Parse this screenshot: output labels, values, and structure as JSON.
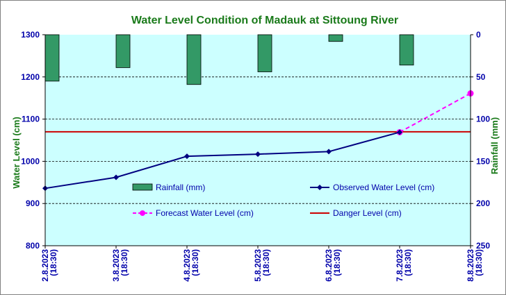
{
  "colors": {
    "title": "#1a7a1a",
    "plot_bg": "#ccffff",
    "rainfall_fill": "#339966",
    "rainfall_edge": "#000000",
    "observed": "#000080",
    "forecast": "#ff00ff",
    "danger": "#cc0000",
    "tick_text": "#0000aa",
    "left_axis_title": "#1a7a1a",
    "right_axis_title": "#1a7a1a"
  },
  "chart_data": {
    "type": "line",
    "title": "Water Level Condition of Madauk at Sittoung River",
    "ylabel": "Water Level (cm)",
    "y2label": "Rainfall (mm)",
    "ylim": [
      800,
      1300
    ],
    "y2lim": [
      0,
      250
    ],
    "y2_inverted": true,
    "yticks": [
      "1300",
      "1200",
      "1100",
      "1000",
      "900",
      "800"
    ],
    "y2ticks": [
      "0",
      "50",
      "100",
      "150",
      "200",
      "250"
    ],
    "x_labels": [
      [
        "2.8.2023",
        "(18:30)"
      ],
      [
        "3.8.2023",
        "(18:30)"
      ],
      [
        "4.8.2023",
        "(18:30)"
      ],
      [
        "5.8.2023",
        "(18:30)"
      ],
      [
        "6.8.2023",
        "(18:30)"
      ],
      [
        "7.8.2023",
        "(18:30)"
      ],
      [
        "8.8.2023",
        "(18:30)"
      ]
    ],
    "grid": true,
    "rainfall": {
      "name": "Rainfall (mm)",
      "values": [
        55,
        39,
        59,
        44,
        8,
        36
      ]
    },
    "observed": {
      "name": "Observed Water Level (cm)",
      "values": [
        936,
        962,
        1012,
        1017,
        1023,
        1069
      ]
    },
    "forecast": {
      "name": "Forecast Water Level (cm)",
      "x_index": [
        5,
        6
      ],
      "values": [
        1069,
        1161
      ]
    },
    "danger": {
      "name": "Danger Level (cm)",
      "value": 1070
    },
    "legend": [
      {
        "key": "rainfall",
        "label": "Rainfall (mm)"
      },
      {
        "key": "observed",
        "label": "Observed Water Level (cm)"
      },
      {
        "key": "forecast",
        "label": "Forecast Water Level (cm)"
      },
      {
        "key": "danger",
        "label": "Danger Level (cm)"
      }
    ]
  }
}
